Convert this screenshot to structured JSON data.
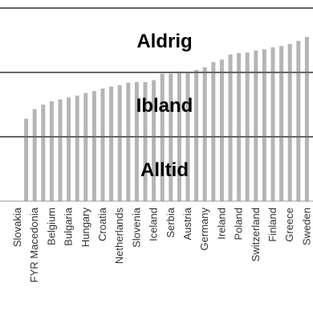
{
  "chart_data": {
    "type": "bar",
    "categories": [
      "Slovakia",
      null,
      "FYR Macedonia",
      null,
      "Belgium",
      null,
      "Bulgaria",
      null,
      "Hungary",
      null,
      "Croatia",
      null,
      "Netherlands",
      null,
      "Slovenia",
      null,
      "Iceland",
      null,
      "Serbia",
      null,
      "Austria",
      null,
      "Germany",
      null,
      "Ireland",
      null,
      "Poland",
      null,
      "Switzerland",
      null,
      "Finland",
      null,
      "Greece",
      null,
      "Sweden"
    ],
    "values": [
      0,
      1.28,
      1.43,
      1.5,
      1.55,
      1.58,
      1.61,
      1.64,
      1.68,
      1.71,
      1.75,
      1.78,
      1.8,
      1.84,
      1.85,
      1.85,
      1.88,
      1.98,
      1.98,
      1.99,
      2.01,
      2.04,
      2.08,
      2.16,
      2.2,
      2.28,
      2.3,
      2.31,
      2.34,
      2.36,
      2.39,
      2.41,
      2.44,
      2.49,
      2.55
    ],
    "color": "#b5b5b5",
    "ylim": [
      0,
      3
    ],
    "reference_lines": [
      1,
      2,
      3
    ],
    "band_labels": [
      "Alltid",
      "Ibland",
      "Aldrig"
    ]
  }
}
